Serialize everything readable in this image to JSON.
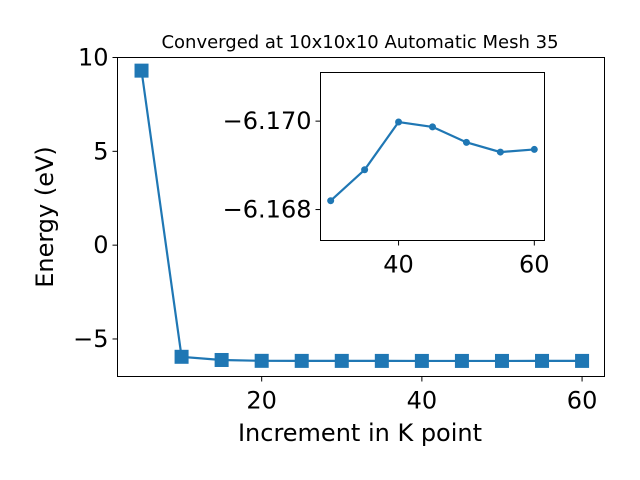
{
  "chart_data": [
    {
      "type": "line",
      "title": "Converged at 10x10x10 Automatic Mesh 35",
      "xlabel": "Increment in K point",
      "ylabel": "Energy (eV)",
      "xlim": [
        2,
        62.8
      ],
      "ylim": [
        -7.0,
        10.0
      ],
      "xticks": [
        20,
        40,
        60
      ],
      "xtick_labels": [
        "20",
        "40",
        "60"
      ],
      "yticks": [
        -5,
        0,
        5,
        10
      ],
      "ytick_labels": [
        "−5",
        "0",
        "5",
        "10"
      ],
      "grid": false,
      "marker": "square",
      "color": "#1f77b4",
      "series": [
        {
          "x": [
            5,
            10,
            15,
            20,
            25,
            30,
            35,
            40,
            45,
            50,
            55,
            60
          ],
          "y": [
            9.3,
            -5.95,
            -6.12,
            -6.165,
            -6.168,
            -6.168,
            -6.169,
            -6.17,
            -6.17,
            -6.17,
            -6.169,
            -6.169
          ]
        }
      ]
    },
    {
      "type": "line",
      "inset": true,
      "title": "",
      "xlabel": "",
      "ylabel": "",
      "xlim": [
        28.5,
        61.5
      ],
      "ylim": [
        -6.1673,
        -6.1711
      ],
      "xticks": [
        40,
        60
      ],
      "xtick_labels": [
        "40",
        "60"
      ],
      "yticks": [
        -6.17,
        -6.168
      ],
      "ytick_labels": [
        "−6.170",
        "−6.168"
      ],
      "grid": false,
      "marker": "circle",
      "color": "#1f77b4",
      "series": [
        {
          "x": [
            30,
            35,
            40,
            45,
            50,
            55,
            60
          ],
          "y": [
            -6.1682,
            -6.1689,
            -6.16998,
            -6.16987,
            -6.16952,
            -6.1693,
            -6.16936
          ]
        }
      ]
    }
  ]
}
